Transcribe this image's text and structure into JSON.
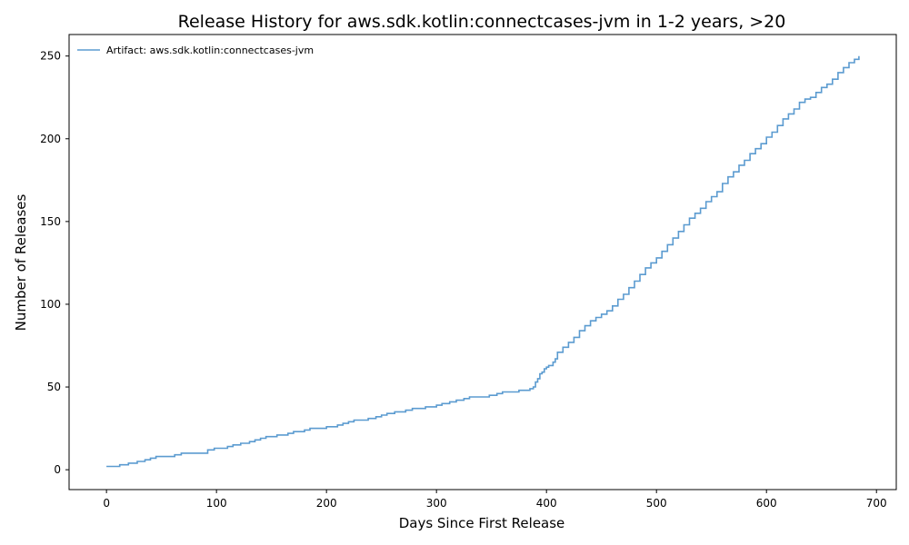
{
  "chart_data": {
    "type": "line",
    "step": true,
    "title": "Release History for aws.sdk.kotlin:connectcases-jvm in 1-2 years, >20",
    "xlabel": "Days Since First Release",
    "ylabel": "Number of Releases",
    "xlim": [
      -34,
      718
    ],
    "ylim": [
      -12,
      263
    ],
    "xticks": [
      0,
      100,
      200,
      300,
      400,
      500,
      600,
      700
    ],
    "yticks": [
      0,
      50,
      100,
      150,
      200,
      250
    ],
    "grid": false,
    "legend_position": "top-left",
    "series": [
      {
        "name": "Artifact: aws.sdk.kotlin:connectcases-jvm",
        "color": "#5b9bd0",
        "x": [
          0,
          12,
          20,
          28,
          35,
          40,
          45,
          55,
          62,
          68,
          90,
          92,
          98,
          110,
          115,
          122,
          130,
          135,
          140,
          145,
          150,
          155,
          165,
          170,
          180,
          185,
          190,
          200,
          210,
          215,
          220,
          225,
          230,
          238,
          245,
          250,
          255,
          262,
          268,
          272,
          278,
          282,
          290,
          300,
          305,
          312,
          318,
          325,
          330,
          340,
          348,
          355,
          360,
          365,
          370,
          375,
          380,
          385,
          388,
          390,
          392,
          394,
          396,
          398,
          400,
          402,
          404,
          406,
          408,
          410,
          415,
          420,
          425,
          430,
          435,
          440,
          445,
          450,
          455,
          460,
          465,
          470,
          475,
          480,
          485,
          490,
          495,
          500,
          505,
          510,
          515,
          520,
          525,
          530,
          535,
          540,
          545,
          550,
          555,
          560,
          565,
          570,
          575,
          580,
          585,
          590,
          595,
          600,
          605,
          610,
          615,
          620,
          625,
          630,
          635,
          640,
          645,
          650,
          655,
          660,
          665,
          670,
          675,
          680,
          684
        ],
        "y": [
          2,
          3,
          4,
          5,
          6,
          7,
          8,
          8,
          9,
          10,
          10,
          12,
          13,
          14,
          15,
          16,
          17,
          18,
          19,
          20,
          20,
          21,
          22,
          23,
          24,
          25,
          25,
          26,
          27,
          28,
          29,
          30,
          30,
          31,
          32,
          33,
          34,
          35,
          35,
          36,
          37,
          37,
          38,
          39,
          40,
          41,
          42,
          43,
          44,
          44,
          45,
          46,
          47,
          47,
          47,
          48,
          48,
          49,
          50,
          53,
          55,
          58,
          59,
          61,
          62,
          63,
          63,
          65,
          67,
          71,
          74,
          77,
          80,
          84,
          87,
          90,
          92,
          94,
          96,
          99,
          103,
          106,
          110,
          114,
          118,
          122,
          125,
          128,
          132,
          136,
          140,
          144,
          148,
          152,
          155,
          158,
          162,
          165,
          168,
          173,
          177,
          180,
          184,
          187,
          191,
          194,
          197,
          201,
          204,
          208,
          212,
          215,
          218,
          222,
          224,
          225,
          228,
          231,
          233,
          236,
          240,
          243,
          246,
          248,
          250
        ]
      }
    ]
  }
}
